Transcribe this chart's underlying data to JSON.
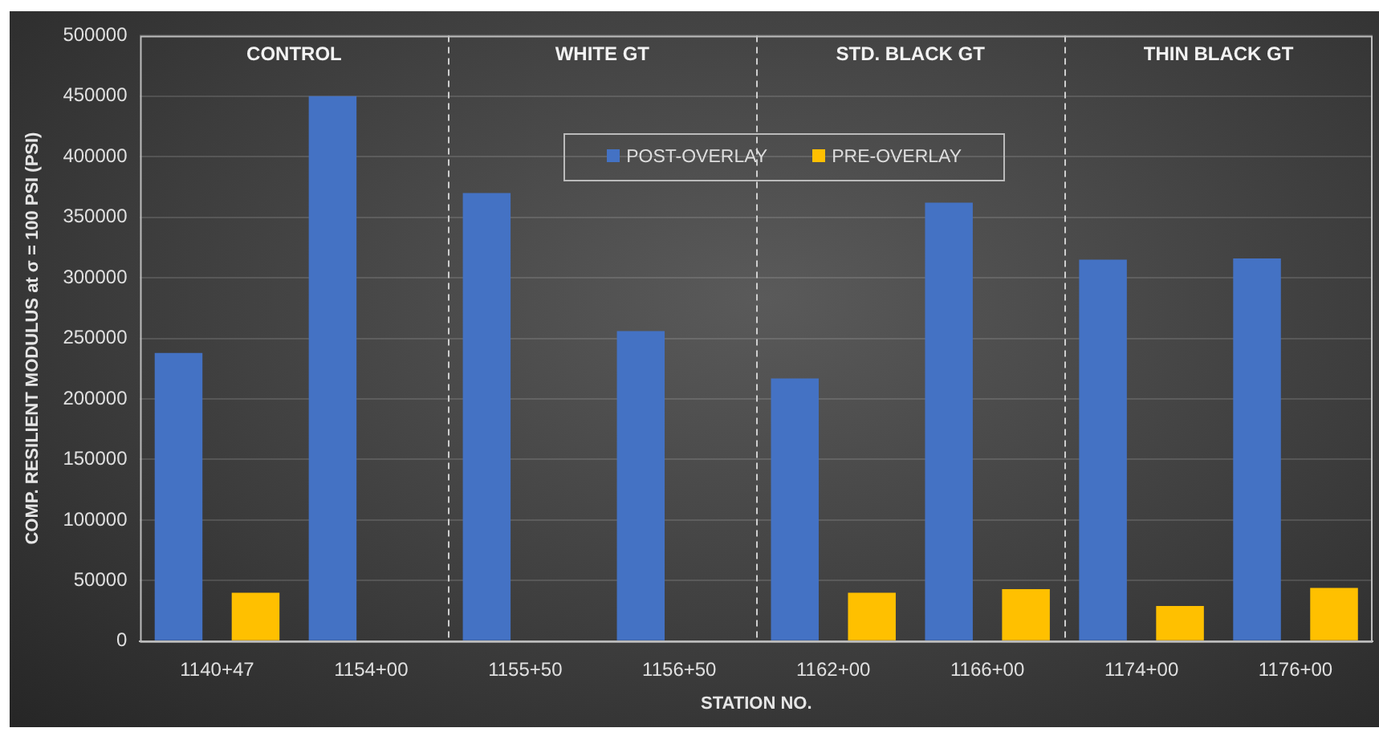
{
  "chart_data": {
    "type": "bar",
    "xlabel": "STATION NO.",
    "ylabel": "COMP. RESILIENT MODULUS at σ = 100 PSI (PSI)",
    "categories": [
      "1140+47",
      "1154+00",
      "1155+50",
      "1156+50",
      "1162+00",
      "1166+00",
      "1174+00",
      "1176+00"
    ],
    "series": [
      {
        "name": "POST-OVERLAY",
        "color": "#4472c4",
        "values": [
          238000,
          450000,
          370000,
          256000,
          217000,
          362000,
          315000,
          316000
        ]
      },
      {
        "name": "PRE-OVERLAY",
        "color": "#ffc000",
        "values": [
          40000,
          null,
          null,
          null,
          40000,
          43000,
          29000,
          44000
        ]
      }
    ],
    "ylim": [
      0,
      500000
    ],
    "yticks": [
      0,
      50000,
      100000,
      150000,
      200000,
      250000,
      300000,
      350000,
      400000,
      450000,
      500000
    ],
    "grid": "y",
    "legend": "top",
    "annotations": [
      "CONTROL",
      "WHITE GT",
      "STD. BLACK GT",
      "THIN BLACK GT"
    ]
  }
}
